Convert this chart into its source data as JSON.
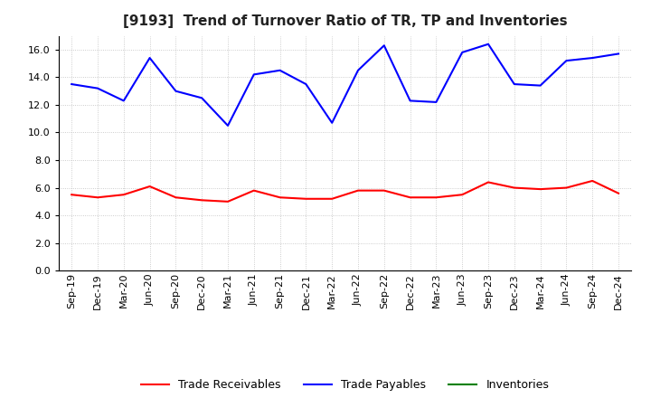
{
  "title": "[9193]  Trend of Turnover Ratio of TR, TP and Inventories",
  "x_labels": [
    "Sep-19",
    "Dec-19",
    "Mar-20",
    "Jun-20",
    "Sep-20",
    "Dec-20",
    "Mar-21",
    "Jun-21",
    "Sep-21",
    "Dec-21",
    "Mar-22",
    "Jun-22",
    "Sep-22",
    "Dec-22",
    "Mar-23",
    "Jun-23",
    "Sep-23",
    "Dec-23",
    "Mar-24",
    "Jun-24",
    "Sep-24",
    "Dec-24"
  ],
  "trade_receivables": [
    5.5,
    5.3,
    5.5,
    6.1,
    5.3,
    5.1,
    5.0,
    5.8,
    5.3,
    5.2,
    5.2,
    5.8,
    5.8,
    5.3,
    5.3,
    5.5,
    6.4,
    6.0,
    5.9,
    6.0,
    6.5,
    5.6
  ],
  "trade_payables": [
    13.5,
    13.2,
    12.3,
    15.4,
    13.0,
    12.5,
    10.5,
    14.2,
    14.5,
    13.5,
    10.7,
    14.5,
    16.3,
    12.3,
    12.2,
    15.8,
    16.4,
    13.5,
    13.4,
    15.2,
    15.4,
    15.7
  ],
  "inventories": [],
  "ylim": [
    0.0,
    17.0
  ],
  "yticks": [
    0.0,
    2.0,
    4.0,
    6.0,
    8.0,
    10.0,
    12.0,
    14.0,
    16.0
  ],
  "tr_color": "#ff0000",
  "tp_color": "#0000ff",
  "inv_color": "#008000",
  "background_color": "#ffffff",
  "grid_color": "#b0b0b0",
  "title_fontsize": 11,
  "legend_fontsize": 9,
  "tick_fontsize": 8
}
